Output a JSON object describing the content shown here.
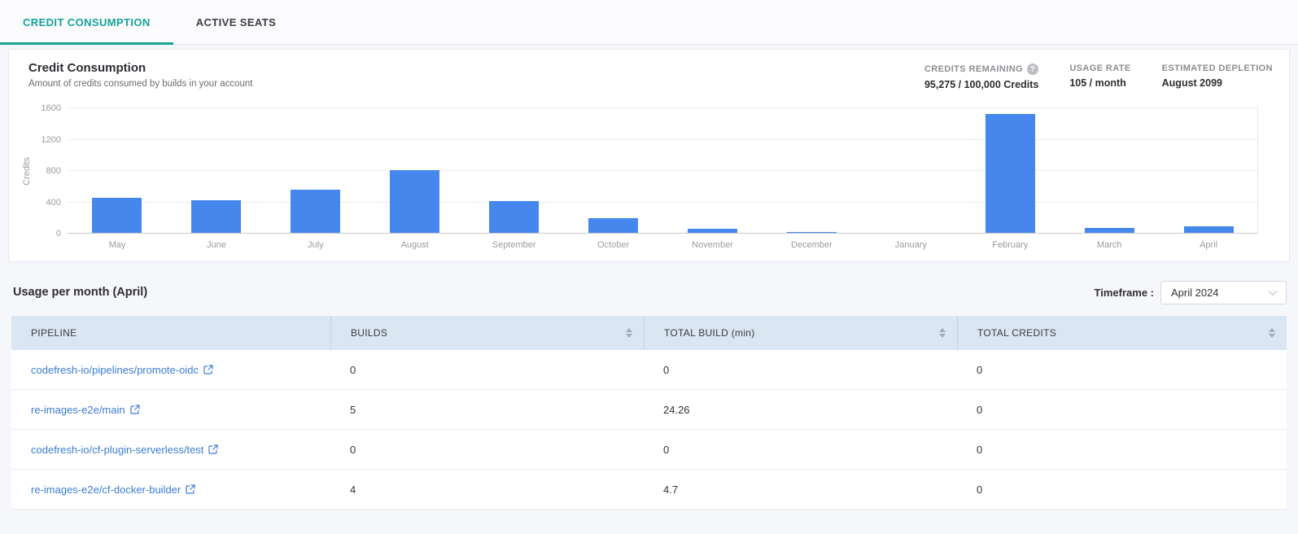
{
  "tabs": [
    {
      "label": "CREDIT CONSUMPTION",
      "active": true
    },
    {
      "label": "ACTIVE SEATS",
      "active": false
    }
  ],
  "chart_card": {
    "title": "Credit Consumption",
    "subtitle": "Amount of credits consumed by builds in your account",
    "stats": [
      {
        "label": "CREDITS REMAINING",
        "value": "95,275 / 100,000 Credits",
        "help_icon": "?"
      },
      {
        "label": "USAGE RATE",
        "value": "105 / month"
      },
      {
        "label": "ESTIMATED DEPLETION",
        "value": "August 2099"
      }
    ]
  },
  "chart_data": {
    "type": "bar",
    "categories": [
      "May",
      "June",
      "July",
      "August",
      "September",
      "October",
      "November",
      "December",
      "January",
      "February",
      "March",
      "April"
    ],
    "values": [
      460,
      430,
      560,
      810,
      420,
      200,
      65,
      25,
      0,
      1530,
      70,
      90
    ],
    "title": "Credit Consumption",
    "xlabel": "",
    "ylabel": "Credits",
    "ylim": [
      0,
      1600
    ],
    "yticks": [
      0,
      400,
      800,
      1200,
      1600
    ],
    "grid": true,
    "legend": "none",
    "bar_color": "#4687ee"
  },
  "usage_section": {
    "title": "Usage per month (April)",
    "timeframe_label": "Timeframe :",
    "timeframe_value": "April 2024",
    "chevron_icon": "⌄"
  },
  "table": {
    "columns": [
      {
        "label": "PIPELINE",
        "sortable": false
      },
      {
        "label": "BUILDS",
        "sortable": true
      },
      {
        "label": "TOTAL BUILD (min)",
        "sortable": true
      },
      {
        "label": "TOTAL CREDITS",
        "sortable": true
      }
    ],
    "rows": [
      {
        "pipeline": "codefresh-io/pipelines/promote-oidc",
        "builds": "0",
        "total_build_min": "0",
        "total_credits": "0"
      },
      {
        "pipeline": "re-images-e2e/main",
        "builds": "5",
        "total_build_min": "24.26",
        "total_credits": "0"
      },
      {
        "pipeline": "codefresh-io/cf-plugin-serverless/test",
        "builds": "0",
        "total_build_min": "0",
        "total_credits": "0"
      },
      {
        "pipeline": "re-images-e2e/cf-docker-builder",
        "builds": "4",
        "total_build_min": "4.7",
        "total_credits": "0"
      }
    ]
  },
  "colors": {
    "accent_teal": "#17a398",
    "bar_blue": "#4687ee",
    "link_blue": "#3b7cd5",
    "table_header_bg": "#dbe6f3",
    "page_bg": "#f6f7fb"
  }
}
